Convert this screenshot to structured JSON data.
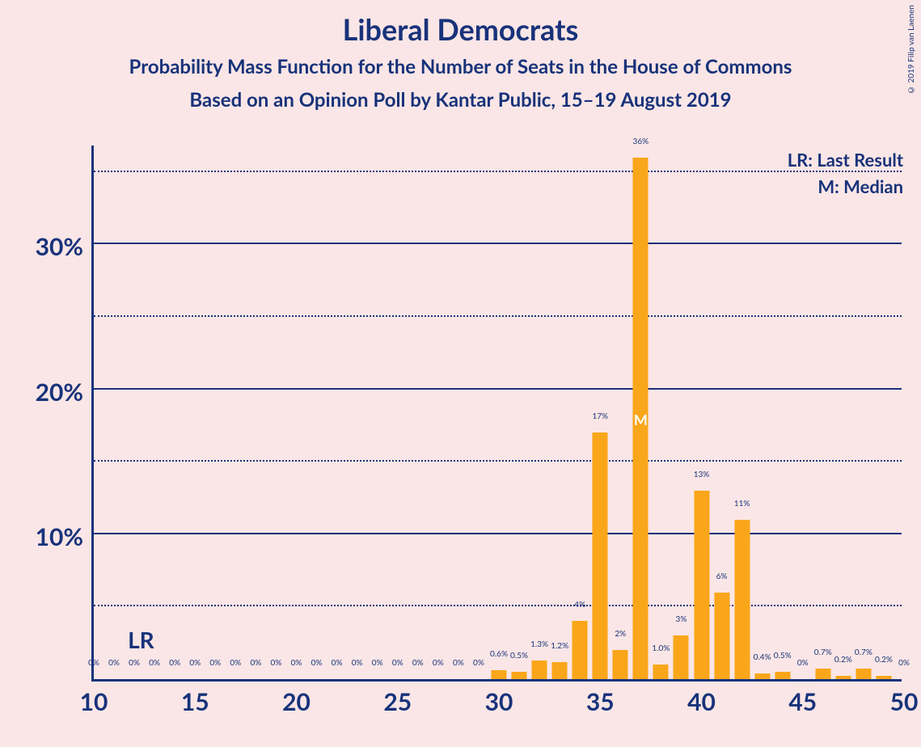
{
  "titles": {
    "main": "Liberal Democrats",
    "sub1": "Probability Mass Function for the Number of Seats in the House of Commons",
    "sub2": "Based on an Opinion Poll by Kantar Public, 15–19 August 2019"
  },
  "copyright": "© 2019 Filip van Laenen",
  "legend": {
    "lr": "LR: Last Result",
    "m": "M: Median"
  },
  "chart": {
    "type": "bar",
    "bar_color": "#faa61a",
    "axis_color": "#18327a",
    "text_color": "#18327a",
    "background_color": "#fae6e6",
    "median_marker_color": "#ffffff",
    "xmin": 10,
    "xmax": 50,
    "ymin": 0,
    "ymax": 37,
    "y_ticks_major": [
      10,
      20,
      30
    ],
    "y_ticks_minor": [
      5,
      15,
      25,
      35
    ],
    "x_ticks": [
      10,
      15,
      20,
      25,
      30,
      35,
      40,
      45,
      50
    ],
    "lr_x": 12,
    "lr_label": "LR",
    "median_x": 37,
    "median_label": "M",
    "bar_width_ratio": 0.76,
    "bars": [
      {
        "x": 10,
        "v": 0,
        "label": "0%"
      },
      {
        "x": 11,
        "v": 0,
        "label": "0%"
      },
      {
        "x": 12,
        "v": 0,
        "label": "0%"
      },
      {
        "x": 13,
        "v": 0,
        "label": "0%"
      },
      {
        "x": 14,
        "v": 0,
        "label": "0%"
      },
      {
        "x": 15,
        "v": 0,
        "label": "0%"
      },
      {
        "x": 16,
        "v": 0,
        "label": "0%"
      },
      {
        "x": 17,
        "v": 0,
        "label": "0%"
      },
      {
        "x": 18,
        "v": 0,
        "label": "0%"
      },
      {
        "x": 19,
        "v": 0,
        "label": "0%"
      },
      {
        "x": 20,
        "v": 0,
        "label": "0%"
      },
      {
        "x": 21,
        "v": 0,
        "label": "0%"
      },
      {
        "x": 22,
        "v": 0,
        "label": "0%"
      },
      {
        "x": 23,
        "v": 0,
        "label": "0%"
      },
      {
        "x": 24,
        "v": 0,
        "label": "0%"
      },
      {
        "x": 25,
        "v": 0,
        "label": "0%"
      },
      {
        "x": 26,
        "v": 0,
        "label": "0%"
      },
      {
        "x": 27,
        "v": 0,
        "label": "0%"
      },
      {
        "x": 28,
        "v": 0,
        "label": "0%"
      },
      {
        "x": 29,
        "v": 0,
        "label": "0%"
      },
      {
        "x": 30,
        "v": 0.6,
        "label": "0.6%"
      },
      {
        "x": 31,
        "v": 0.5,
        "label": "0.5%"
      },
      {
        "x": 32,
        "v": 1.3,
        "label": "1.3%"
      },
      {
        "x": 33,
        "v": 1.2,
        "label": "1.2%"
      },
      {
        "x": 34,
        "v": 4,
        "label": "4%"
      },
      {
        "x": 35,
        "v": 17,
        "label": "17%"
      },
      {
        "x": 36,
        "v": 2,
        "label": "2%"
      },
      {
        "x": 37,
        "v": 36,
        "label": "36%"
      },
      {
        "x": 38,
        "v": 1.0,
        "label": "1.0%"
      },
      {
        "x": 39,
        "v": 3,
        "label": "3%"
      },
      {
        "x": 40,
        "v": 13,
        "label": "13%"
      },
      {
        "x": 41,
        "v": 6,
        "label": "6%"
      },
      {
        "x": 42,
        "v": 11,
        "label": "11%"
      },
      {
        "x": 43,
        "v": 0.4,
        "label": "0.4%"
      },
      {
        "x": 44,
        "v": 0.5,
        "label": "0.5%"
      },
      {
        "x": 45,
        "v": 0,
        "label": "0%"
      },
      {
        "x": 46,
        "v": 0.7,
        "label": "0.7%"
      },
      {
        "x": 47,
        "v": 0.2,
        "label": "0.2%"
      },
      {
        "x": 48,
        "v": 0.7,
        "label": "0.7%"
      },
      {
        "x": 49,
        "v": 0.2,
        "label": "0.2%"
      },
      {
        "x": 50,
        "v": 0,
        "label": "0%"
      }
    ]
  }
}
